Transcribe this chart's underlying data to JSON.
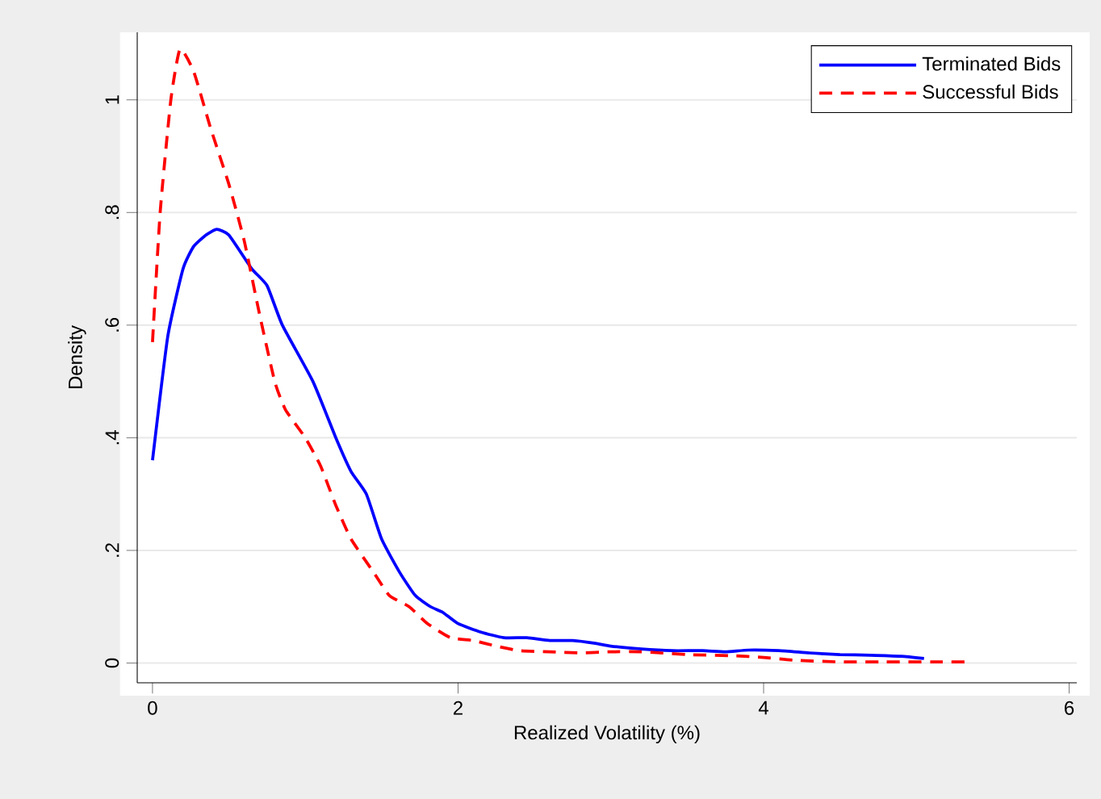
{
  "chart_data": {
    "type": "line",
    "xlabel": "Realized Volatility (%)",
    "ylabel": "Density",
    "xlim": [
      -0.1,
      6.05
    ],
    "ylim": [
      -0.035,
      1.12
    ],
    "xticks": [
      0,
      2,
      4,
      6
    ],
    "yticks": [
      0,
      {
        "value": 0.2,
        "label": ".2"
      },
      {
        "value": 0.4,
        "label": ".4"
      },
      {
        "value": 0.6,
        "label": ".6"
      },
      {
        "value": 0.8,
        "label": ".8"
      },
      1
    ],
    "grid": "y",
    "legend": "top right",
    "marker": "none",
    "series": [
      {
        "name": "Terminated Bids",
        "color": "#0000ff",
        "line_style": "solid",
        "x": [
          0,
          0.1,
          0.2,
          0.27,
          0.35,
          0.42,
          0.5,
          0.65,
          0.75,
          0.85,
          1.05,
          1.2,
          1.3,
          1.4,
          1.5,
          1.62,
          1.72,
          1.82,
          1.9,
          2.0,
          2.15,
          2.3,
          2.45,
          2.6,
          2.75,
          2.9,
          3.0,
          3.2,
          3.4,
          3.6,
          3.75,
          3.9,
          4.1,
          4.3,
          4.5,
          4.7,
          4.9,
          5.05
        ],
        "values": [
          0.36,
          0.58,
          0.7,
          0.74,
          0.76,
          0.77,
          0.76,
          0.7,
          0.67,
          0.6,
          0.5,
          0.4,
          0.34,
          0.3,
          0.22,
          0.16,
          0.12,
          0.1,
          0.09,
          0.07,
          0.055,
          0.045,
          0.045,
          0.04,
          0.04,
          0.035,
          0.03,
          0.025,
          0.022,
          0.022,
          0.02,
          0.023,
          0.022,
          0.018,
          0.015,
          0.014,
          0.012,
          0.008
        ]
      },
      {
        "name": "Successful Bids",
        "color": "#ff0000",
        "line_style": "dashed",
        "x": [
          0,
          0.05,
          0.12,
          0.18,
          0.27,
          0.38,
          0.5,
          0.6,
          0.7,
          0.8,
          0.87,
          1.0,
          1.1,
          1.2,
          1.3,
          1.45,
          1.55,
          1.68,
          1.8,
          1.95,
          2.1,
          2.25,
          2.4,
          2.6,
          2.8,
          3.0,
          3.2,
          3.5,
          3.8,
          4.0,
          4.2,
          4.5,
          4.8,
          5.1,
          5.35
        ],
        "values": [
          0.57,
          0.8,
          1.0,
          1.09,
          1.05,
          0.95,
          0.85,
          0.75,
          0.62,
          0.5,
          0.45,
          0.4,
          0.35,
          0.28,
          0.22,
          0.16,
          0.12,
          0.1,
          0.07,
          0.045,
          0.04,
          0.03,
          0.022,
          0.02,
          0.018,
          0.02,
          0.02,
          0.015,
          0.013,
          0.01,
          0.005,
          0.002,
          0.002,
          0.002,
          0.002
        ]
      }
    ]
  }
}
